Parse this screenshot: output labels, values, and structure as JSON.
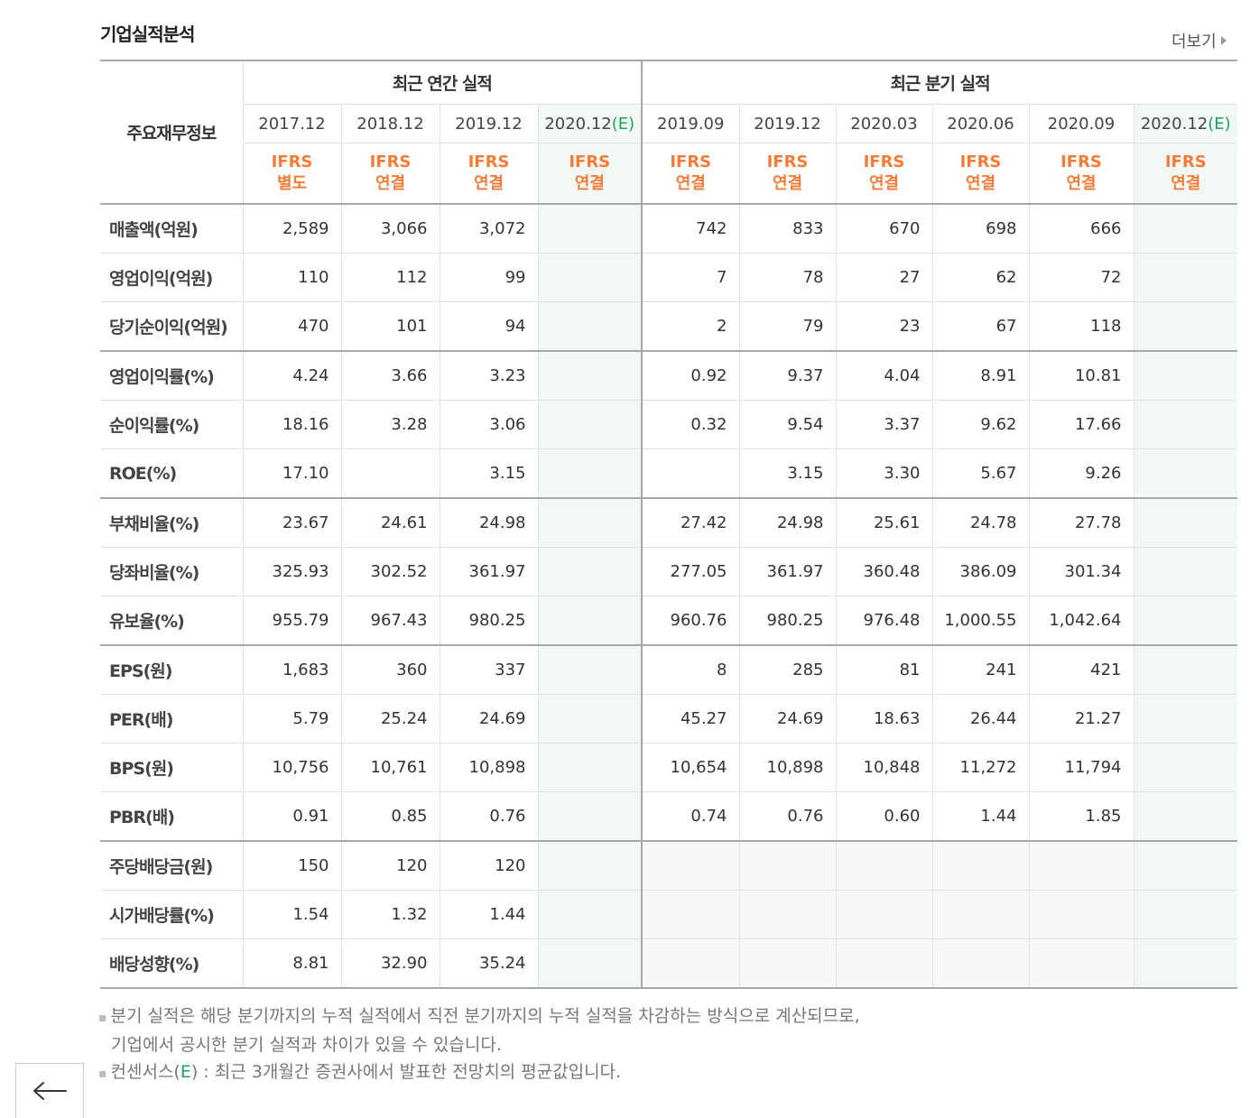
{
  "section": {
    "title": "기업실적분석",
    "more_label": "더보기"
  },
  "table": {
    "label_header": "주요재무정보",
    "groups": {
      "annual": "최근 연간 실적",
      "quarter": "최근 분기 실적"
    },
    "periods": [
      {
        "date": "2017.12",
        "est": "",
        "std1": "IFRS",
        "std2": "별도"
      },
      {
        "date": "2018.12",
        "est": "",
        "std1": "IFRS",
        "std2": "연결"
      },
      {
        "date": "2019.12",
        "est": "",
        "std1": "IFRS",
        "std2": "연결"
      },
      {
        "date": "2020.12",
        "est": "(E)",
        "std1": "IFRS",
        "std2": "연결"
      },
      {
        "date": "2019.09",
        "est": "",
        "std1": "IFRS",
        "std2": "연결"
      },
      {
        "date": "2019.12",
        "est": "",
        "std1": "IFRS",
        "std2": "연결"
      },
      {
        "date": "2020.03",
        "est": "",
        "std1": "IFRS",
        "std2": "연결"
      },
      {
        "date": "2020.06",
        "est": "",
        "std1": "IFRS",
        "std2": "연결"
      },
      {
        "date": "2020.09",
        "est": "",
        "std1": "IFRS",
        "std2": "연결"
      },
      {
        "date": "2020.12",
        "est": "(E)",
        "std1": "IFRS",
        "std2": "연결"
      }
    ],
    "rows": [
      {
        "label": "매출액(억원)",
        "values": [
          "2,589",
          "3,066",
          "3,072",
          "",
          "742",
          "833",
          "670",
          "698",
          "666",
          ""
        ]
      },
      {
        "label": "영업이익(억원)",
        "values": [
          "110",
          "112",
          "99",
          "",
          "7",
          "78",
          "27",
          "62",
          "72",
          ""
        ]
      },
      {
        "label": "당기순이익(억원)",
        "values": [
          "470",
          "101",
          "94",
          "",
          "2",
          "79",
          "23",
          "67",
          "118",
          ""
        ]
      },
      {
        "label": "영업이익률(%)",
        "values": [
          "4.24",
          "3.66",
          "3.23",
          "",
          "0.92",
          "9.37",
          "4.04",
          "8.91",
          "10.81",
          ""
        ]
      },
      {
        "label": "순이익률(%)",
        "values": [
          "18.16",
          "3.28",
          "3.06",
          "",
          "0.32",
          "9.54",
          "3.37",
          "9.62",
          "17.66",
          ""
        ]
      },
      {
        "label": "ROE(%)",
        "values": [
          "17.10",
          "",
          "3.15",
          "",
          "",
          "3.15",
          "3.30",
          "5.67",
          "9.26",
          ""
        ]
      },
      {
        "label": "부채비율(%)",
        "values": [
          "23.67",
          "24.61",
          "24.98",
          "",
          "27.42",
          "24.98",
          "25.61",
          "24.78",
          "27.78",
          ""
        ]
      },
      {
        "label": "당좌비율(%)",
        "values": [
          "325.93",
          "302.52",
          "361.97",
          "",
          "277.05",
          "361.97",
          "360.48",
          "386.09",
          "301.34",
          ""
        ]
      },
      {
        "label": "유보율(%)",
        "values": [
          "955.79",
          "967.43",
          "980.25",
          "",
          "960.76",
          "980.25",
          "976.48",
          "1,000.55",
          "1,042.64",
          ""
        ]
      },
      {
        "label": "EPS(원)",
        "values": [
          "1,683",
          "360",
          "337",
          "",
          "8",
          "285",
          "81",
          "241",
          "421",
          ""
        ]
      },
      {
        "label": "PER(배)",
        "values": [
          "5.79",
          "25.24",
          "24.69",
          "",
          "45.27",
          "24.69",
          "18.63",
          "26.44",
          "21.27",
          ""
        ]
      },
      {
        "label": "BPS(원)",
        "values": [
          "10,756",
          "10,761",
          "10,898",
          "",
          "10,654",
          "10,898",
          "10,848",
          "11,272",
          "11,794",
          ""
        ]
      },
      {
        "label": "PBR(배)",
        "values": [
          "0.91",
          "0.85",
          "0.76",
          "",
          "0.74",
          "0.76",
          "0.60",
          "1.44",
          "1.85",
          ""
        ]
      },
      {
        "label": "주당배당금(원)",
        "values": [
          "150",
          "120",
          "120",
          "",
          "",
          "",
          "",
          "",
          "",
          ""
        ]
      },
      {
        "label": "시가배당률(%)",
        "values": [
          "1.54",
          "1.32",
          "1.44",
          "",
          "",
          "",
          "",
          "",
          "",
          ""
        ]
      },
      {
        "label": "배당성향(%)",
        "values": [
          "8.81",
          "32.90",
          "35.24",
          "",
          "",
          "",
          "",
          "",
          "",
          ""
        ]
      }
    ]
  },
  "notes": {
    "line1": "분기 실적은 해당 분기까지의 누적 실적에서 직전 분기까지의 누적 실적을 차감하는 방식으로 계산되므로,",
    "line2": "기업에서 공시한 분기 실적과 차이가 있을 수 있습니다.",
    "line3_a": "컨센서스(",
    "line3_e": "E",
    "line3_b": ") : 최근 3개월간 증권사에서 발표한 전망치의 평균값입니다."
  },
  "icons": {
    "back": "arrow-left-icon",
    "more": "triangle-right-icon"
  },
  "colors": {
    "accent_orange": "#f47b38",
    "estimate_green": "#1ea35a"
  }
}
